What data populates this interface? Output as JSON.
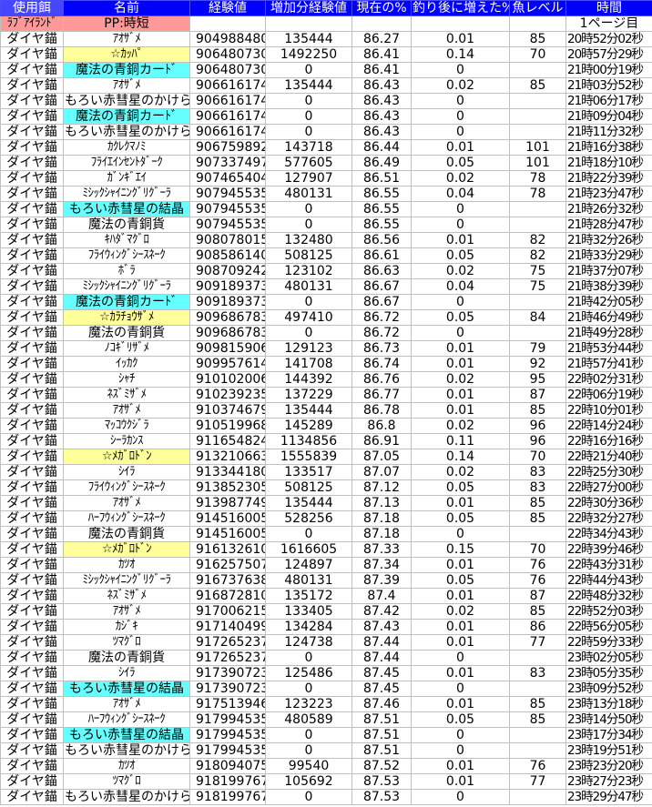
{
  "headers": [
    "使用餌",
    "名前",
    "経験値",
    "増加分経験値",
    "現在の%",
    "釣り後に増えた%",
    "魚レベル",
    "時間"
  ],
  "info_row": {
    "bait": "ﾗﾌﾞｱｲﾗﾝﾄﾞ",
    "name": "PP:時短",
    "page": "1ページ目"
  },
  "colors": {
    "header": "#0000ff",
    "pink": "#ff9999",
    "yellow": "#ffff99",
    "cyan": "#66ffff",
    "grid": "#c0c0c0"
  },
  "bait": "ダイヤ錨",
  "rows": [
    [
      "ｱｵｻﾞﾒ",
      "",
      "904988480",
      "135444",
      "86.27",
      "0.01",
      "85",
      "20時52分02秒"
    ],
    [
      "☆ｶｯﾊﾟ",
      "y",
      "906480730",
      "1492250",
      "86.41",
      "0.14",
      "70",
      "20時57分29秒"
    ],
    [
      "魔法の青銅カーﾄﾞ",
      "c",
      "906480730",
      "0",
      "86.41",
      "0",
      "",
      "21時00分19秒"
    ],
    [
      "ｱｵｻﾞﾒ",
      "",
      "906616174",
      "135444",
      "86.43",
      "0.02",
      "85",
      "21時03分52秒"
    ],
    [
      "もろい赤彗星のかけら",
      "",
      "906616174",
      "0",
      "86.43",
      "0",
      "",
      "21時06分17秒"
    ],
    [
      "魔法の青銅カーﾄﾞ",
      "c",
      "906616174",
      "0",
      "86.43",
      "0",
      "",
      "21時09分04秒"
    ],
    [
      "もろい赤彗星のかけら",
      "",
      "906616174",
      "0",
      "86.43",
      "0",
      "",
      "21時11分32秒"
    ],
    [
      "ｶｸﾚｸﾏﾉﾐ",
      "",
      "906759892",
      "143718",
      "86.44",
      "0.01",
      "101",
      "21時16分38秒"
    ],
    [
      "ﾌﾗｲｴｲﾝｾﾝﾄﾀﾞｰｸ",
      "",
      "907337497",
      "577605",
      "86.49",
      "0.05",
      "101",
      "21時18分10秒"
    ],
    [
      "ｶﾞﾝｷﾞｴｲ",
      "",
      "907465404",
      "127907",
      "86.51",
      "0.02",
      "78",
      "21時22分39秒"
    ],
    [
      "ﾐｼｯｸｼｬｲﾆﾝｸﾞﾘｸﾞｰﾗ",
      "",
      "907945535",
      "480131",
      "86.55",
      "0.04",
      "78",
      "21時23分47秒"
    ],
    [
      "もろい赤彗星の結晶",
      "c",
      "907945535",
      "0",
      "86.55",
      "0",
      "",
      "21時26分32秒"
    ],
    [
      "魔法の青銅貨",
      "",
      "907945535",
      "0",
      "86.55",
      "0",
      "",
      "21時28分47秒"
    ],
    [
      "ｷﾊﾀﾞﾏｸﾞﾛ",
      "",
      "908078015",
      "132480",
      "86.56",
      "0.01",
      "82",
      "21時32分26秒"
    ],
    [
      "ﾌﾗｲｳｨﾝｸﾞｼｰｽﾈｰｸ",
      "",
      "908586140",
      "508125",
      "86.61",
      "0.05",
      "82",
      "21時33分29秒"
    ],
    [
      "ﾎﾞﾗ",
      "",
      "908709242",
      "123102",
      "86.63",
      "0.02",
      "75",
      "21時37分07秒"
    ],
    [
      "ﾐｼｯｸｼｬｲﾆﾝｸﾞﾘｸﾞｰﾗ",
      "",
      "909189373",
      "480131",
      "86.67",
      "0.04",
      "75",
      "21時38分39秒"
    ],
    [
      "魔法の青銅カーﾄﾞ",
      "c",
      "909189373",
      "0",
      "86.67",
      "0",
      "",
      "21時42分05秒"
    ],
    [
      "☆ｶﾗﾁｮｳｻﾞﾒ",
      "y",
      "909686783",
      "497410",
      "86.72",
      "0.05",
      "84",
      "21時46分49秒"
    ],
    [
      "魔法の青銅貨",
      "",
      "909686783",
      "0",
      "86.72",
      "0",
      "",
      "21時49分28秒"
    ],
    [
      "ﾉｺｷﾞﾘｻﾞﾒ",
      "",
      "909815906",
      "129123",
      "86.73",
      "0.01",
      "79",
      "21時53分44秒"
    ],
    [
      "ｲｯｶｸ",
      "",
      "909957614",
      "141708",
      "86.74",
      "0.01",
      "92",
      "21時57分41秒"
    ],
    [
      "ｼｬﾁ",
      "",
      "910102006",
      "144392",
      "86.76",
      "0.02",
      "95",
      "22時02分31秒"
    ],
    [
      "ﾈｽﾞﾐｻﾞﾒ",
      "",
      "910239235",
      "137229",
      "86.77",
      "0.01",
      "87",
      "22時06分19秒"
    ],
    [
      "ｱｵｻﾞﾒ",
      "",
      "910374679",
      "135444",
      "86.78",
      "0.01",
      "85",
      "22時10分01秒"
    ],
    [
      "ﾏｯｺｳｸｼﾞﾗ",
      "",
      "910519968",
      "145289",
      "86.8",
      "0.02",
      "96",
      "22時14分24秒"
    ],
    [
      "ｼｰﾗｶﾝｽ",
      "",
      "911654824",
      "1134856",
      "86.91",
      "0.11",
      "96",
      "22時16分16秒"
    ],
    [
      "☆ﾒｶﾞﾛﾄﾞﾝ",
      "y",
      "913210663",
      "1555839",
      "87.05",
      "0.14",
      "70",
      "22時21分40秒"
    ],
    [
      "ｼｲﾗ",
      "",
      "913344180",
      "133517",
      "87.07",
      "0.02",
      "83",
      "22時25分30秒"
    ],
    [
      "ﾌﾗｲｳｨﾝｸﾞｼｰｽﾈｰｸ",
      "",
      "913852305",
      "508125",
      "87.12",
      "0.05",
      "83",
      "22時27分00秒"
    ],
    [
      "ｱｵｻﾞﾒ",
      "",
      "913987749",
      "135444",
      "87.13",
      "0.01",
      "85",
      "22時30分36秒"
    ],
    [
      "ﾊｰﾌｳｨﾝｸﾞｼｰｽﾈｰｸ",
      "",
      "914516005",
      "528256",
      "87.18",
      "0.05",
      "85",
      "22時32分27秒"
    ],
    [
      "魔法の青銅貨",
      "",
      "914516005",
      "0",
      "87.18",
      "0",
      "",
      "22時34分43秒"
    ],
    [
      "☆ﾒｶﾞﾛﾄﾞﾝ",
      "y",
      "916132610",
      "1616605",
      "87.33",
      "0.15",
      "70",
      "22時39分46秒"
    ],
    [
      "ｶﾂｵ",
      "",
      "916257507",
      "124897",
      "87.34",
      "0.01",
      "76",
      "22時43分31秒"
    ],
    [
      "ﾐｼｯｸｼｬｲﾆﾝｸﾞﾘｸﾞｰﾗ",
      "",
      "916737638",
      "480131",
      "87.39",
      "0.05",
      "76",
      "22時44分43秒"
    ],
    [
      "ﾈｽﾞﾐｻﾞﾒ",
      "",
      "916872810",
      "135172",
      "87.4",
      "0.01",
      "87",
      "22時48分32秒"
    ],
    [
      "ｱｵｻﾞﾒ",
      "",
      "917006215",
      "133405",
      "87.42",
      "0.02",
      "85",
      "22時52分03秒"
    ],
    [
      "ｶｼﾞｷ",
      "",
      "917140499",
      "134284",
      "87.43",
      "0.01",
      "86",
      "22時56分05秒"
    ],
    [
      "ﾂﾏｸﾞﾛ",
      "",
      "917265237",
      "124738",
      "87.44",
      "0.01",
      "77",
      "22時59分33秒"
    ],
    [
      "魔法の青銅貨",
      "",
      "917265237",
      "0",
      "87.44",
      "0",
      "",
      "23時02分05秒"
    ],
    [
      "ｼｲﾗ",
      "",
      "917390723",
      "125486",
      "87.45",
      "0.01",
      "83",
      "23時05分35秒"
    ],
    [
      "もろい赤彗星の結晶",
      "c",
      "917390723",
      "0",
      "87.45",
      "0",
      "",
      "23時09分52秒"
    ],
    [
      "ｱｵｻﾞﾒ",
      "",
      "917513946",
      "123223",
      "87.46",
      "0.01",
      "85",
      "23時13分18秒"
    ],
    [
      "ﾊｰﾌｳｨﾝｸﾞｼｰｽﾈｰｸ",
      "",
      "917994535",
      "480589",
      "87.51",
      "0.05",
      "85",
      "23時14分50秒"
    ],
    [
      "もろい赤彗星の結晶",
      "c",
      "917994535",
      "0",
      "87.51",
      "0",
      "",
      "23時17分34秒"
    ],
    [
      "もろい赤彗星のかけら",
      "",
      "917994535",
      "0",
      "87.51",
      "0",
      "",
      "23時19分51秒"
    ],
    [
      "ｶﾂｵ",
      "",
      "918094075",
      "99540",
      "87.52",
      "0.01",
      "76",
      "23時23分20秒"
    ],
    [
      "ﾂﾏｸﾞﾛ",
      "",
      "918199767",
      "105692",
      "87.53",
      "0.01",
      "77",
      "23時27分23秒"
    ],
    [
      "もろい赤彗星のかけら",
      "",
      "918199767",
      "0",
      "87.53",
      "0",
      "",
      "23時29分47秒"
    ]
  ]
}
